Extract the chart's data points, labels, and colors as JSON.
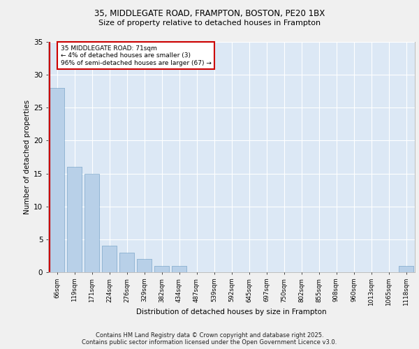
{
  "title1": "35, MIDDLEGATE ROAD, FRAMPTON, BOSTON, PE20 1BX",
  "title2": "Size of property relative to detached houses in Frampton",
  "xlabel": "Distribution of detached houses by size in Frampton",
  "ylabel": "Number of detached properties",
  "categories": [
    "66sqm",
    "119sqm",
    "171sqm",
    "224sqm",
    "276sqm",
    "329sqm",
    "382sqm",
    "434sqm",
    "487sqm",
    "539sqm",
    "592sqm",
    "645sqm",
    "697sqm",
    "750sqm",
    "802sqm",
    "855sqm",
    "908sqm",
    "960sqm",
    "1013sqm",
    "1065sqm",
    "1118sqm"
  ],
  "values": [
    28,
    16,
    15,
    4,
    3,
    2,
    1,
    1,
    0,
    0,
    0,
    0,
    0,
    0,
    0,
    0,
    0,
    0,
    0,
    0,
    1
  ],
  "bar_color": "#b8d0e8",
  "bar_edge_color": "#8ab0d0",
  "subject_line_color": "#cc0000",
  "annotation_text": "35 MIDDLEGATE ROAD: 71sqm\n← 4% of detached houses are smaller (3)\n96% of semi-detached houses are larger (67) →",
  "annotation_box_color": "#ffffff",
  "annotation_box_edge": "#cc0000",
  "ylim": [
    0,
    35
  ],
  "yticks": [
    0,
    5,
    10,
    15,
    20,
    25,
    30,
    35
  ],
  "bg_color": "#dce8f5",
  "grid_color": "#ffffff",
  "fig_color": "#f0f0f0",
  "footer1": "Contains HM Land Registry data © Crown copyright and database right 2025.",
  "footer2": "Contains public sector information licensed under the Open Government Licence v3.0."
}
